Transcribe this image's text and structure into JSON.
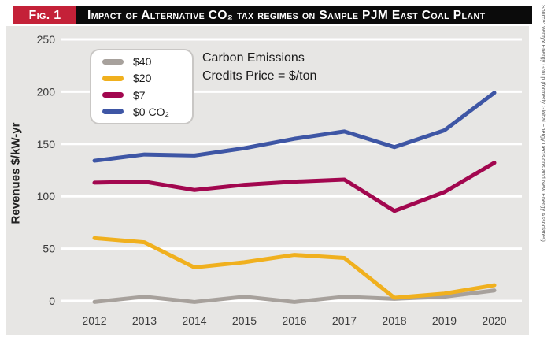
{
  "header": {
    "fig_label": "Fig. 1",
    "title": "Impact of Alternative CO₂ tax regimes on Sample PJM East Coal Plant"
  },
  "legend": {
    "items": [
      {
        "label": "$40",
        "color": "#A7A19C"
      },
      {
        "label": "$20",
        "color": "#F0B01E"
      },
      {
        "label": "$7",
        "color": "#A2074F"
      },
      {
        "label": "$0 CO₂",
        "color": "#3E56A5"
      }
    ],
    "note_line1": "Carbon Emissions",
    "note_line2": "Credits Price = $/ton"
  },
  "axes": {
    "ylabel": "Revenues $/kW-yr"
  },
  "source_note": "Source: Ventyx Energy Group (formerly Global Energy Decisions and New Energy Associates)",
  "chart_data": {
    "type": "line",
    "title": "Impact of Alternative CO₂ tax regimes on Sample PJM East Coal Plant",
    "x": [
      "2012",
      "2013",
      "2014",
      "2015",
      "2016",
      "2017",
      "2018",
      "2019",
      "2020"
    ],
    "series": [
      {
        "name": "$40",
        "color": "#A7A19C",
        "values": [
          -1,
          4,
          -1,
          4,
          -1,
          4,
          2,
          4,
          10
        ]
      },
      {
        "name": "$20",
        "color": "#F0B01E",
        "values": [
          60,
          56,
          32,
          37,
          44,
          41,
          3,
          7,
          15
        ]
      },
      {
        "name": "$7",
        "color": "#A2074F",
        "values": [
          113,
          114,
          106,
          111,
          114,
          116,
          86,
          104,
          132
        ]
      },
      {
        "name": "$0 CO₂",
        "color": "#3E56A5",
        "values": [
          134,
          140,
          139,
          146,
          155,
          162,
          147,
          163,
          199
        ]
      }
    ],
    "xlabel": "",
    "ylabel": "Revenues $/kW-yr",
    "ylim": [
      0,
      250
    ],
    "yticks": [
      0,
      50,
      100,
      150,
      200,
      250
    ],
    "grid": true,
    "gridline_color": "#FFFFFF",
    "plot_background": "#E7E6E4",
    "legend_position": "top-left",
    "legend_note": "Carbon Emissions Credits Price = $/ton"
  }
}
